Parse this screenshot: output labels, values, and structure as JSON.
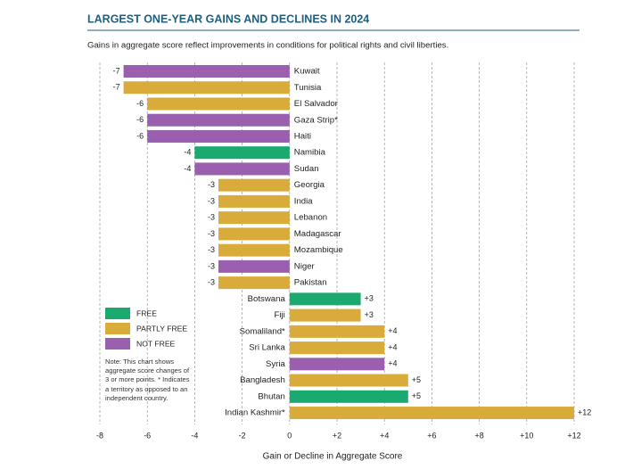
{
  "chart_data": {
    "type": "bar",
    "orientation": "horizontal",
    "title": "LARGEST ONE-YEAR GAINS AND DECLINES IN 2024",
    "subtitle": "Gains in aggregate score reflect improvements in conditions for political rights and civil liberties.",
    "x_label": "Gain or Decline in Aggregate Score",
    "note": "Note: This chart shows aggregate score changes of 3 or more points. * Indicates a territory as opposed to an independent country.",
    "categories": [
      "Kuwait",
      "Tunisia",
      "El Salvador",
      "Gaza Strip*",
      "Haiti",
      "Namibia",
      "Sudan",
      "Georgia",
      "India",
      "Lebanon",
      "Madagascar",
      "Mozambique",
      "Niger",
      "Pakistan",
      "Botswana",
      "Fiji",
      "Somaliland*",
      "Sri Lanka",
      "Syria",
      "Bangladesh",
      "Bhutan",
      "Indian Kashmir*"
    ],
    "series": [
      {
        "name": "FREE",
        "color": "#1aaa6f",
        "values": [
          null,
          null,
          null,
          null,
          null,
          -4,
          null,
          null,
          null,
          null,
          null,
          null,
          null,
          null,
          3,
          null,
          null,
          null,
          null,
          null,
          5,
          null
        ],
        "value_labels": [
          null,
          null,
          null,
          null,
          null,
          "-4",
          null,
          null,
          null,
          null,
          null,
          null,
          null,
          null,
          "+3",
          null,
          null,
          null,
          null,
          null,
          "+5",
          null
        ]
      },
      {
        "name": "PARTLY FREE",
        "color": "#d9ab3a",
        "values": [
          null,
          -7,
          -6,
          null,
          null,
          null,
          null,
          -3,
          -3,
          -3,
          -3,
          -3,
          null,
          -3,
          null,
          3,
          4,
          4,
          null,
          5,
          null,
          12
        ],
        "value_labels": [
          null,
          "-7",
          "-6",
          null,
          null,
          null,
          null,
          "-3",
          "-3",
          "-3",
          "-3",
          "-3",
          null,
          "-3",
          null,
          "+3",
          "+4",
          "+4",
          null,
          "+5",
          null,
          "+12"
        ]
      },
      {
        "name": "NOT FREE",
        "color": "#9a5fae",
        "values": [
          -7,
          null,
          null,
          -6,
          -6,
          null,
          -4,
          null,
          null,
          null,
          null,
          null,
          -3,
          null,
          null,
          null,
          null,
          null,
          4,
          null,
          null,
          null
        ],
        "value_labels": [
          "-7",
          null,
          null,
          "-6",
          "-6",
          null,
          "-4",
          null,
          null,
          null,
          null,
          null,
          "-3",
          null,
          null,
          null,
          null,
          null,
          "+4",
          null,
          null,
          null
        ]
      }
    ],
    "xlim": [
      -8,
      12
    ],
    "xticks": [
      -8,
      -6,
      -4,
      -2,
      0,
      {
        "value": 2,
        "label": "+2"
      },
      {
        "value": 4,
        "label": "+4"
      },
      {
        "value": 6,
        "label": "+6"
      },
      {
        "value": 8,
        "label": "+8"
      },
      {
        "value": 10,
        "label": "+10"
      },
      {
        "value": 12,
        "label": "+12"
      }
    ],
    "grid": true,
    "legend": "lower left"
  }
}
